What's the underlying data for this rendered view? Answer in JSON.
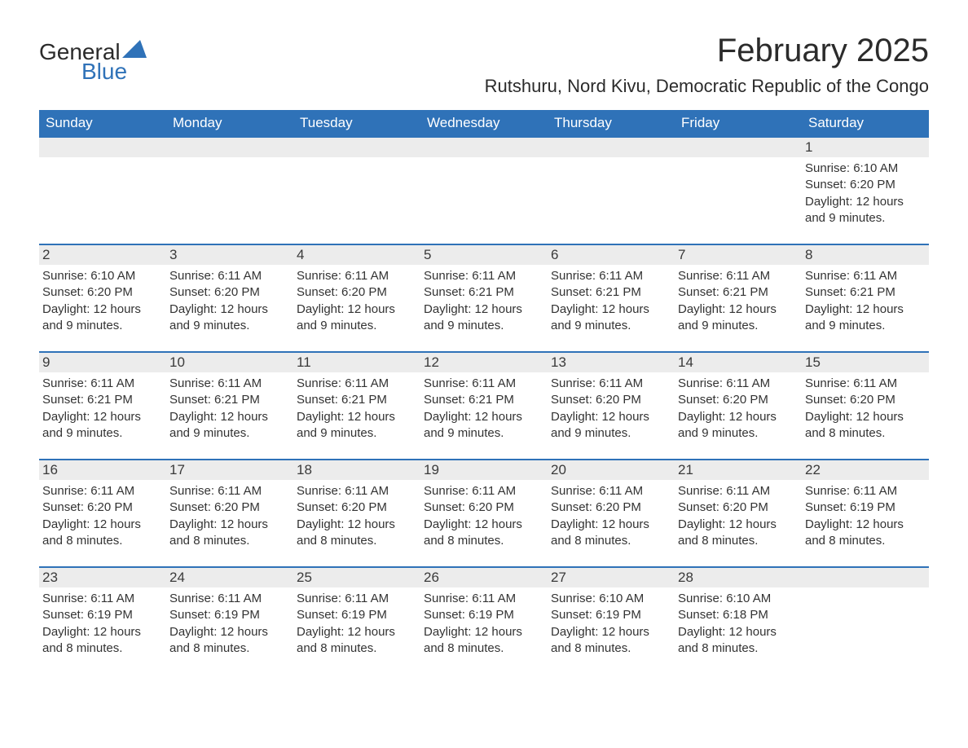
{
  "colors": {
    "brand_blue": "#2f72b8",
    "text_dark": "#2b2b2b",
    "text_body": "#333333",
    "header_bg": "#2f72b8",
    "header_text": "#ffffff",
    "day_bar_bg": "#ececec",
    "background": "#ffffff",
    "row_border": "#2f72b8"
  },
  "typography": {
    "month_title_fontsize": 40,
    "location_fontsize": 22,
    "weekday_fontsize": 17,
    "day_number_fontsize": 17,
    "body_fontsize": 15,
    "font_family": "Arial"
  },
  "logo": {
    "text_general": "General",
    "text_blue": "Blue",
    "icon_name": "flag-icon",
    "icon_color": "#2f72b8"
  },
  "header": {
    "month_title": "February 2025",
    "location": "Rutshuru, Nord Kivu, Democratic Republic of the Congo"
  },
  "calendar": {
    "type": "calendar-table",
    "weekdays": [
      "Sunday",
      "Monday",
      "Tuesday",
      "Wednesday",
      "Thursday",
      "Friday",
      "Saturday"
    ],
    "weeks": [
      [
        {
          "day": null
        },
        {
          "day": null
        },
        {
          "day": null
        },
        {
          "day": null
        },
        {
          "day": null
        },
        {
          "day": null
        },
        {
          "day": "1",
          "sunrise": "Sunrise: 6:10 AM",
          "sunset": "Sunset: 6:20 PM",
          "daylight": "Daylight: 12 hours and 9 minutes."
        }
      ],
      [
        {
          "day": "2",
          "sunrise": "Sunrise: 6:10 AM",
          "sunset": "Sunset: 6:20 PM",
          "daylight": "Daylight: 12 hours and 9 minutes."
        },
        {
          "day": "3",
          "sunrise": "Sunrise: 6:11 AM",
          "sunset": "Sunset: 6:20 PM",
          "daylight": "Daylight: 12 hours and 9 minutes."
        },
        {
          "day": "4",
          "sunrise": "Sunrise: 6:11 AM",
          "sunset": "Sunset: 6:20 PM",
          "daylight": "Daylight: 12 hours and 9 minutes."
        },
        {
          "day": "5",
          "sunrise": "Sunrise: 6:11 AM",
          "sunset": "Sunset: 6:21 PM",
          "daylight": "Daylight: 12 hours and 9 minutes."
        },
        {
          "day": "6",
          "sunrise": "Sunrise: 6:11 AM",
          "sunset": "Sunset: 6:21 PM",
          "daylight": "Daylight: 12 hours and 9 minutes."
        },
        {
          "day": "7",
          "sunrise": "Sunrise: 6:11 AM",
          "sunset": "Sunset: 6:21 PM",
          "daylight": "Daylight: 12 hours and 9 minutes."
        },
        {
          "day": "8",
          "sunrise": "Sunrise: 6:11 AM",
          "sunset": "Sunset: 6:21 PM",
          "daylight": "Daylight: 12 hours and 9 minutes."
        }
      ],
      [
        {
          "day": "9",
          "sunrise": "Sunrise: 6:11 AM",
          "sunset": "Sunset: 6:21 PM",
          "daylight": "Daylight: 12 hours and 9 minutes."
        },
        {
          "day": "10",
          "sunrise": "Sunrise: 6:11 AM",
          "sunset": "Sunset: 6:21 PM",
          "daylight": "Daylight: 12 hours and 9 minutes."
        },
        {
          "day": "11",
          "sunrise": "Sunrise: 6:11 AM",
          "sunset": "Sunset: 6:21 PM",
          "daylight": "Daylight: 12 hours and 9 minutes."
        },
        {
          "day": "12",
          "sunrise": "Sunrise: 6:11 AM",
          "sunset": "Sunset: 6:21 PM",
          "daylight": "Daylight: 12 hours and 9 minutes."
        },
        {
          "day": "13",
          "sunrise": "Sunrise: 6:11 AM",
          "sunset": "Sunset: 6:20 PM",
          "daylight": "Daylight: 12 hours and 9 minutes."
        },
        {
          "day": "14",
          "sunrise": "Sunrise: 6:11 AM",
          "sunset": "Sunset: 6:20 PM",
          "daylight": "Daylight: 12 hours and 9 minutes."
        },
        {
          "day": "15",
          "sunrise": "Sunrise: 6:11 AM",
          "sunset": "Sunset: 6:20 PM",
          "daylight": "Daylight: 12 hours and 8 minutes."
        }
      ],
      [
        {
          "day": "16",
          "sunrise": "Sunrise: 6:11 AM",
          "sunset": "Sunset: 6:20 PM",
          "daylight": "Daylight: 12 hours and 8 minutes."
        },
        {
          "day": "17",
          "sunrise": "Sunrise: 6:11 AM",
          "sunset": "Sunset: 6:20 PM",
          "daylight": "Daylight: 12 hours and 8 minutes."
        },
        {
          "day": "18",
          "sunrise": "Sunrise: 6:11 AM",
          "sunset": "Sunset: 6:20 PM",
          "daylight": "Daylight: 12 hours and 8 minutes."
        },
        {
          "day": "19",
          "sunrise": "Sunrise: 6:11 AM",
          "sunset": "Sunset: 6:20 PM",
          "daylight": "Daylight: 12 hours and 8 minutes."
        },
        {
          "day": "20",
          "sunrise": "Sunrise: 6:11 AM",
          "sunset": "Sunset: 6:20 PM",
          "daylight": "Daylight: 12 hours and 8 minutes."
        },
        {
          "day": "21",
          "sunrise": "Sunrise: 6:11 AM",
          "sunset": "Sunset: 6:20 PM",
          "daylight": "Daylight: 12 hours and 8 minutes."
        },
        {
          "day": "22",
          "sunrise": "Sunrise: 6:11 AM",
          "sunset": "Sunset: 6:19 PM",
          "daylight": "Daylight: 12 hours and 8 minutes."
        }
      ],
      [
        {
          "day": "23",
          "sunrise": "Sunrise: 6:11 AM",
          "sunset": "Sunset: 6:19 PM",
          "daylight": "Daylight: 12 hours and 8 minutes."
        },
        {
          "day": "24",
          "sunrise": "Sunrise: 6:11 AM",
          "sunset": "Sunset: 6:19 PM",
          "daylight": "Daylight: 12 hours and 8 minutes."
        },
        {
          "day": "25",
          "sunrise": "Sunrise: 6:11 AM",
          "sunset": "Sunset: 6:19 PM",
          "daylight": "Daylight: 12 hours and 8 minutes."
        },
        {
          "day": "26",
          "sunrise": "Sunrise: 6:11 AM",
          "sunset": "Sunset: 6:19 PM",
          "daylight": "Daylight: 12 hours and 8 minutes."
        },
        {
          "day": "27",
          "sunrise": "Sunrise: 6:10 AM",
          "sunset": "Sunset: 6:19 PM",
          "daylight": "Daylight: 12 hours and 8 minutes."
        },
        {
          "day": "28",
          "sunrise": "Sunrise: 6:10 AM",
          "sunset": "Sunset: 6:18 PM",
          "daylight": "Daylight: 12 hours and 8 minutes."
        },
        {
          "day": null
        }
      ]
    ]
  }
}
